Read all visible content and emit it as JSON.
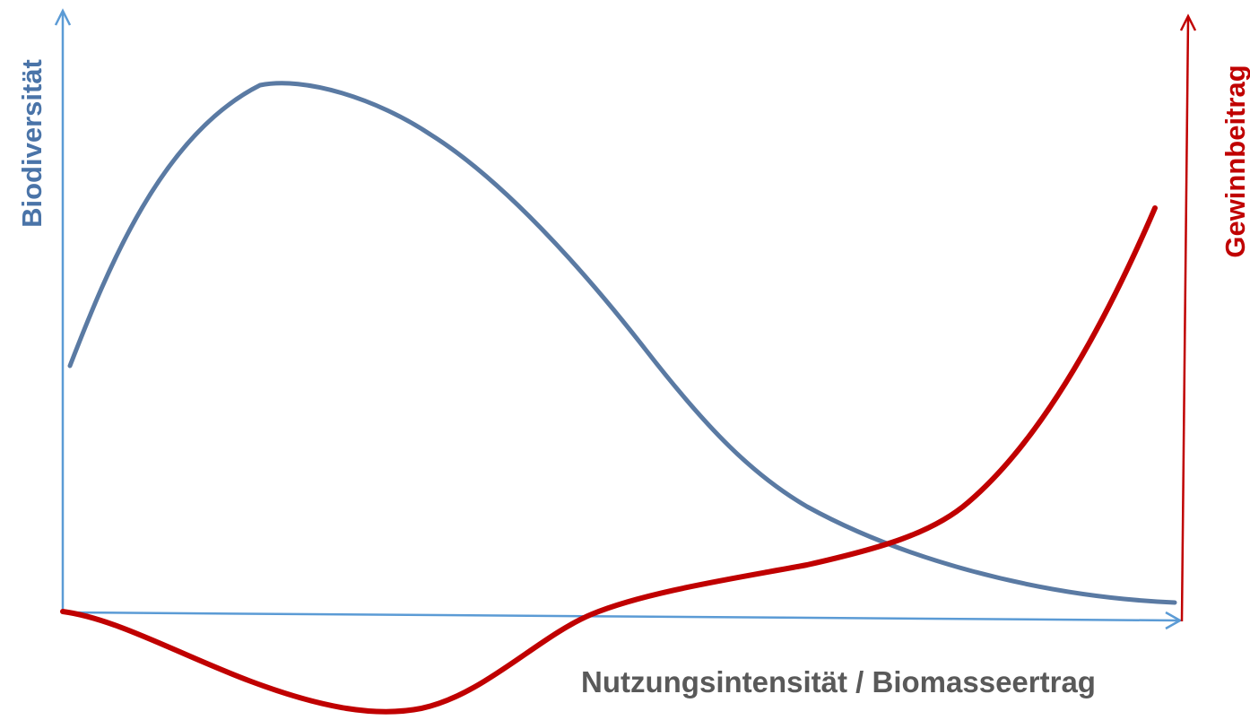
{
  "axes": {
    "y_left": {
      "label": "Biodiversität"
    },
    "y_right": {
      "label": "Gewinnbeitrag"
    },
    "x": {
      "label": "Nutzungsintensität / Biomasseertrag"
    }
  }
}
